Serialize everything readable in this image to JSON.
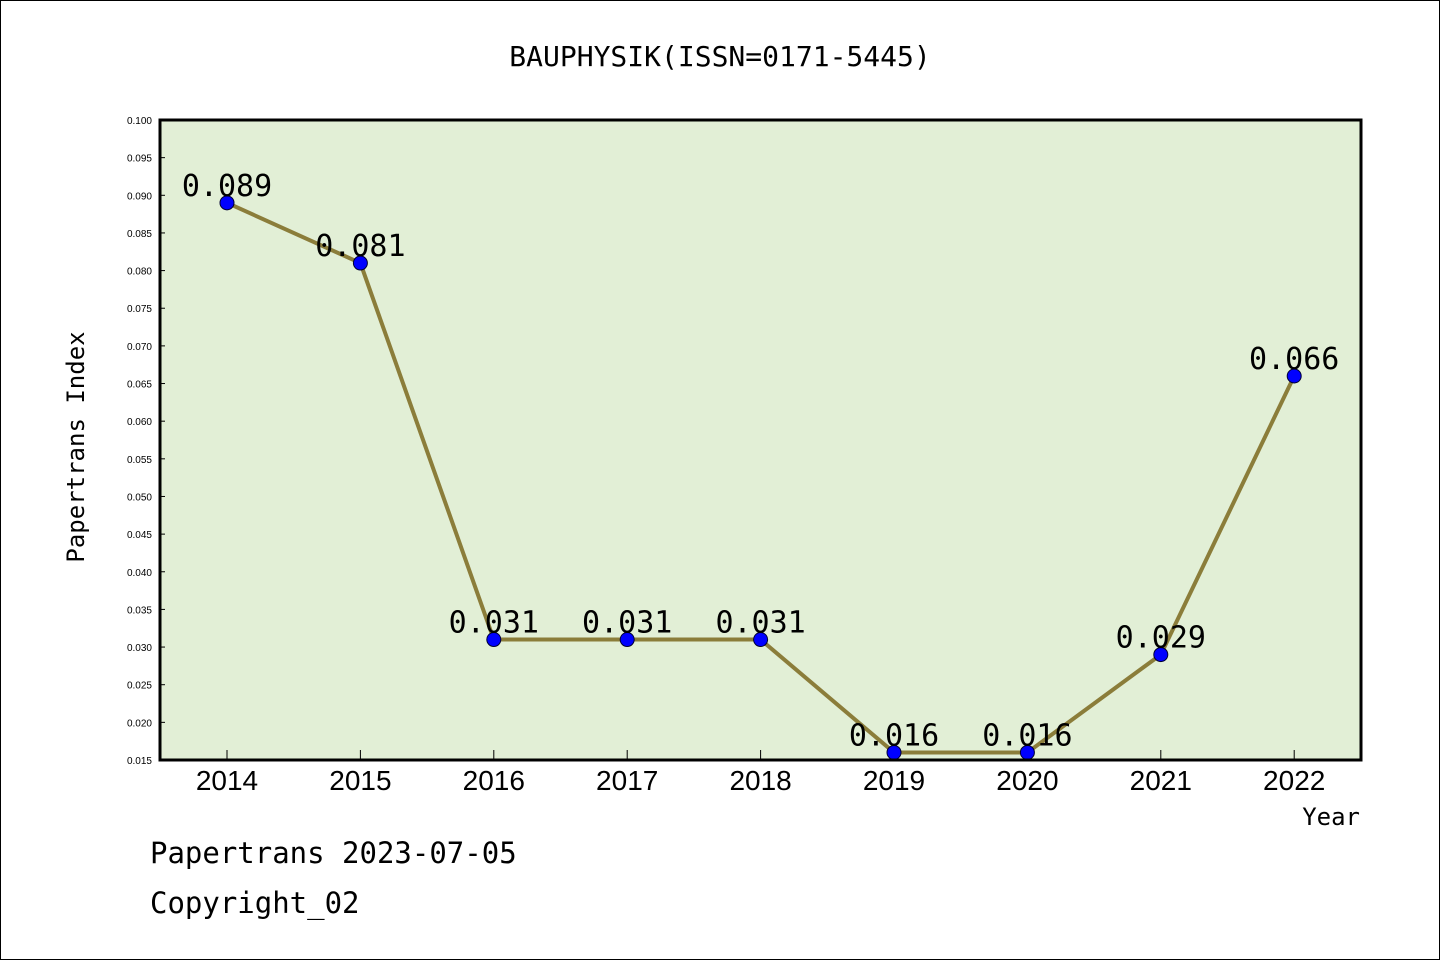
{
  "footer": {
    "line1": "Papertrans 2023-07-05",
    "line2": "Copyright_02"
  },
  "colors": {
    "plot_background": "#e2efd6",
    "line": "#8b7d3a",
    "marker": "#0000ff"
  },
  "chart_data": {
    "type": "line",
    "title": "BAUPHYSIK(ISSN=0171-5445)",
    "xlabel": "Year",
    "ylabel": "Papertrans Index",
    "categories": [
      "2014",
      "2015",
      "2016",
      "2017",
      "2018",
      "2019",
      "2020",
      "2021",
      "2022"
    ],
    "series": [
      {
        "values": [
          0.089,
          0.081,
          0.031,
          0.031,
          0.031,
          0.016,
          0.016,
          0.029,
          0.066
        ],
        "labels": [
          "0.089",
          "0.081",
          "0.031",
          "0.031",
          "0.031",
          "0.016",
          "0.016",
          "0.029",
          "0.066"
        ]
      }
    ],
    "ylim": [
      0.015,
      0.1
    ],
    "yticks": [
      "0.015",
      "0.020",
      "0.025",
      "0.030",
      "0.035",
      "0.040",
      "0.045",
      "0.050",
      "0.055",
      "0.060",
      "0.065",
      "0.070",
      "0.075",
      "0.080",
      "0.085",
      "0.090",
      "0.095",
      "0.100"
    ],
    "grid": false,
    "legend": "none"
  }
}
